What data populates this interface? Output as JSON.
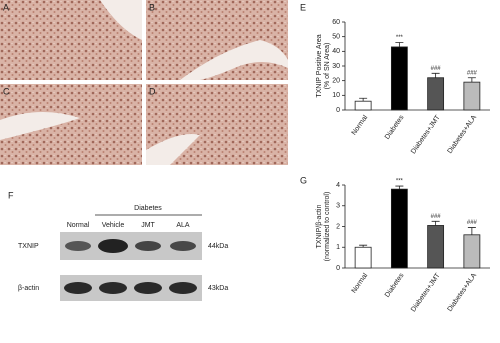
{
  "panels": {
    "micro": [
      "A",
      "B",
      "C",
      "D"
    ],
    "blot": {
      "label": "F",
      "group": "Diabetes",
      "lanes": [
        "Normal",
        "Vehicle",
        "JMT",
        "ALA"
      ],
      "rows": [
        {
          "name": "TXNIP",
          "size": "44kDa"
        },
        {
          "name": "β-actin",
          "size": "43kDa"
        }
      ]
    }
  },
  "chart_data": [
    {
      "type": "bar",
      "panel_label": "E",
      "y_label": [
        "TXNIP Positive Area",
        "(% of SN Area)"
      ],
      "categories": [
        "Normal",
        "Diabetes",
        "Diabetes+JMT",
        "Diabetes+ALA"
      ],
      "values": [
        6,
        43,
        22,
        19
      ],
      "errors": [
        2,
        3,
        3,
        3
      ],
      "annotations": [
        null,
        "***",
        "###",
        "###"
      ],
      "colors": [
        "#ffffff",
        "#000000",
        "#555555",
        "#bbbbbb"
      ],
      "ylim": [
        0,
        60
      ],
      "yticks": [
        0,
        10,
        20,
        30,
        40,
        50,
        60
      ]
    },
    {
      "type": "bar",
      "panel_label": "G",
      "y_label": [
        "TXNIP/β-actin",
        "(normalized to control)"
      ],
      "categories": [
        "Normal",
        "Diabetes",
        "Diabetes+JMT",
        "Diabetes+ALA"
      ],
      "values": [
        1.0,
        3.8,
        2.05,
        1.6
      ],
      "errors": [
        0.1,
        0.15,
        0.2,
        0.35
      ],
      "annotations": [
        null,
        "***",
        "###",
        "###"
      ],
      "colors": [
        "#ffffff",
        "#000000",
        "#555555",
        "#bbbbbb"
      ],
      "ylim": [
        0,
        4
      ],
      "yticks": [
        0,
        1,
        2,
        3,
        4
      ]
    }
  ]
}
